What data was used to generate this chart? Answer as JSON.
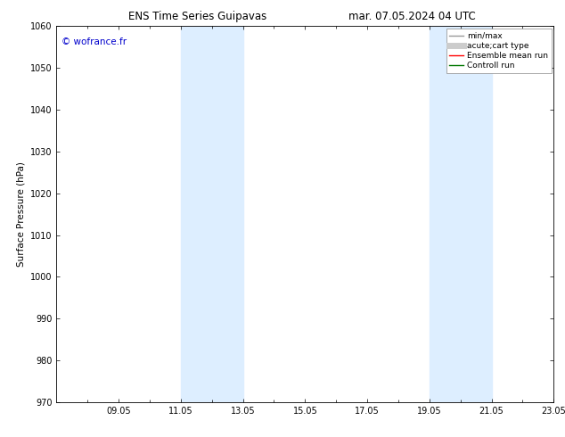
{
  "title_left": "ENS Time Series Guipavas",
  "title_right": "mar. 07.05.2024 04 UTC",
  "ylabel": "Surface Pressure (hPa)",
  "ylim": [
    970,
    1060
  ],
  "yticks": [
    970,
    980,
    990,
    1000,
    1010,
    1020,
    1030,
    1040,
    1050,
    1060
  ],
  "xlim": [
    0,
    16
  ],
  "xtick_labels": [
    "09.05",
    "11.05",
    "13.05",
    "15.05",
    "17.05",
    "19.05",
    "21.05",
    "23.05"
  ],
  "xtick_positions": [
    2,
    4,
    6,
    8,
    10,
    12,
    14,
    16
  ],
  "shaded_regions": [
    {
      "x_start": 4,
      "x_end": 6,
      "color": "#ddeeff"
    },
    {
      "x_start": 12,
      "x_end": 14,
      "color": "#ddeeff"
    }
  ],
  "watermark_text": "© wofrance.fr",
  "watermark_color": "#0000cc",
  "legend_items": [
    {
      "label": "min/max",
      "color": "#999999",
      "linestyle": "-",
      "linewidth": 1.0
    },
    {
      "label": "acute;cart type",
      "color": "#cccccc",
      "linestyle": "-",
      "linewidth": 5
    },
    {
      "label": "Ensemble mean run",
      "color": "#ff0000",
      "linestyle": "-",
      "linewidth": 1.0
    },
    {
      "label": "Controll run",
      "color": "#007700",
      "linestyle": "-",
      "linewidth": 1.0
    }
  ],
  "background_color": "#ffffff",
  "title_fontsize": 8.5,
  "ylabel_fontsize": 7.5,
  "tick_fontsize": 7,
  "watermark_fontsize": 7.5,
  "legend_fontsize": 6.5
}
